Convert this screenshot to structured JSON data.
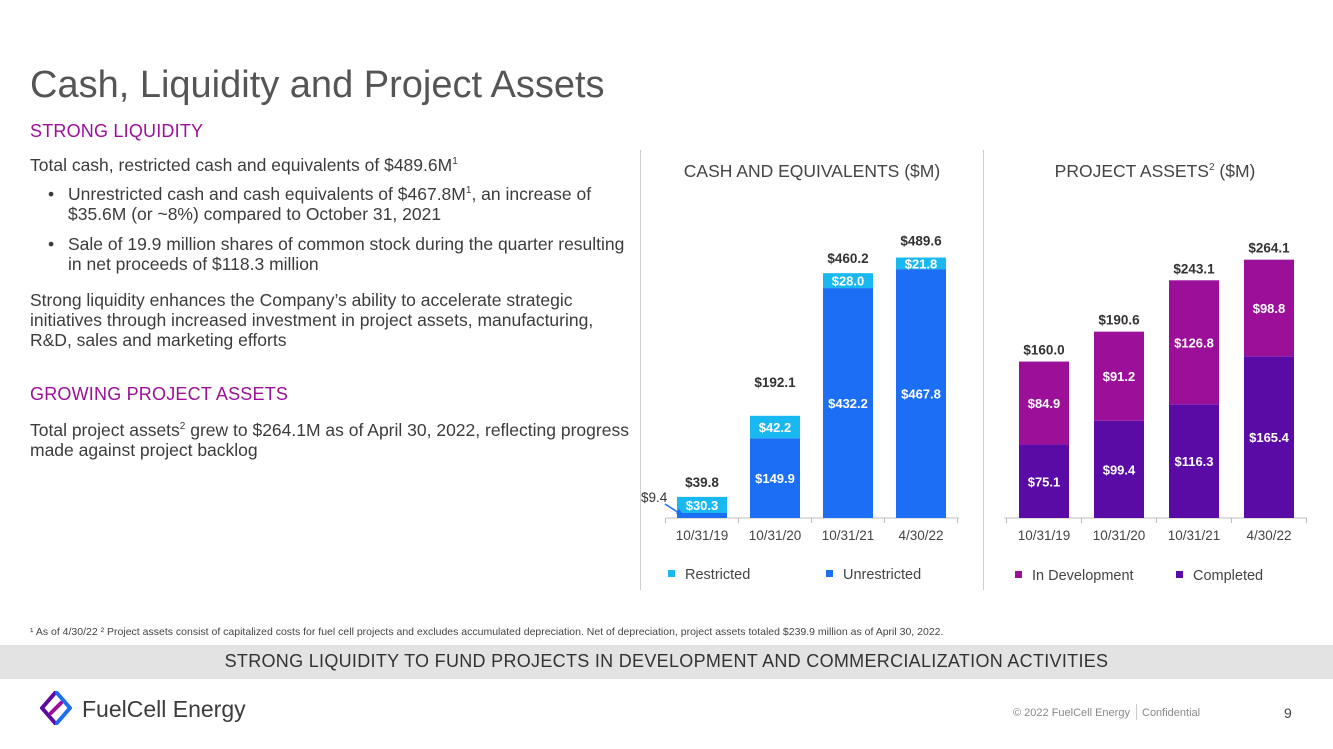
{
  "slide": {
    "title": "Cash, Liquidity and Project Assets",
    "page_number": "9"
  },
  "liquidity": {
    "heading": "STRONG LIQUIDITY",
    "total_text": "Total cash, restricted cash and equivalents of $489.6M",
    "total_sup": "1",
    "bullets": [
      {
        "text_a": "Unrestricted cash and cash equivalents of $467.8M",
        "sup": "1",
        "text_b": ", an increase of $35.6M (or ~8%) compared to October 31, 2021"
      },
      {
        "text_a": "Sale of 19.9 million shares of common stock during the quarter resulting in net proceeds of $118.3 million",
        "sup": "",
        "text_b": ""
      }
    ],
    "bullet_char": "•",
    "summary": "Strong liquidity enhances the Company’s ability to accelerate strategic initiatives through increased investment in project assets, manufacturing, R&D, sales and marketing efforts"
  },
  "project_assets": {
    "heading": "GROWING PROJECT ASSETS",
    "text_a": "Total project assets",
    "sup": "2",
    "text_b": " grew to $264.1M as of April 30, 2022, reflecting progress made against project backlog"
  },
  "chart_data": [
    {
      "type": "bar",
      "stacked": true,
      "title": "CASH AND EQUIVALENTS ($M)",
      "categories": [
        "10/31/19",
        "10/31/20",
        "10/31/21",
        "4/30/22"
      ],
      "series": [
        {
          "name": "Unrestricted",
          "values": [
            9.4,
            149.9,
            432.2,
            467.8
          ],
          "labels": [
            "$9.4",
            "$149.9",
            "$432.2",
            "$467.8"
          ],
          "color": "#1c6ff5"
        },
        {
          "name": "Restricted",
          "values": [
            30.3,
            42.2,
            28.0,
            21.8
          ],
          "labels": [
            "$30.3",
            "$42.2",
            "$28.0",
            "$21.8"
          ],
          "color": "#1ab8f0"
        }
      ],
      "totals": [
        "$39.8",
        "$192.1",
        "$460.2",
        "$489.6"
      ],
      "ylim": [
        0,
        500
      ],
      "grid": false,
      "legend": "bottom"
    },
    {
      "type": "bar",
      "stacked": true,
      "title_main": "PROJECT ASSETS",
      "title_sup": "2",
      "title_rest": " ($M)",
      "categories": [
        "10/31/19",
        "10/31/20",
        "10/31/21",
        "4/30/22"
      ],
      "series": [
        {
          "name": "Completed",
          "values": [
            75.1,
            99.4,
            116.3,
            165.4
          ],
          "labels": [
            "$75.1",
            "$99.4",
            "$116.3",
            "$165.4"
          ],
          "color": "#5a0aa5"
        },
        {
          "name": "In Development",
          "values": [
            84.9,
            91.2,
            126.8,
            98.8
          ],
          "labels": [
            "$84.9",
            "$91.2",
            "$126.8",
            "$98.8"
          ],
          "color": "#9b0f99"
        }
      ],
      "totals": [
        "$160.0",
        "$190.6",
        "$243.1",
        "$264.1"
      ],
      "ylim": [
        0,
        270
      ],
      "grid": false,
      "legend": "bottom"
    }
  ],
  "footnote": "¹ As of 4/30/22  ² Project assets consist of capitalized costs for fuel cell projects and excludes accumulated depreciation. Net of depreciation, project assets totaled $239.9 million as of April 30, 2022.",
  "banner": "STRONG LIQUIDITY TO FUND PROJECTS IN DEVELOPMENT AND COMMERCIALIZATION ACTIVITIES",
  "footer": {
    "logo_text": "FuelCell Energy",
    "logo_icon": "fuelcell-logo-icon",
    "copyright": "© 2022 FuelCell Energy",
    "confidential": "Confidential"
  }
}
